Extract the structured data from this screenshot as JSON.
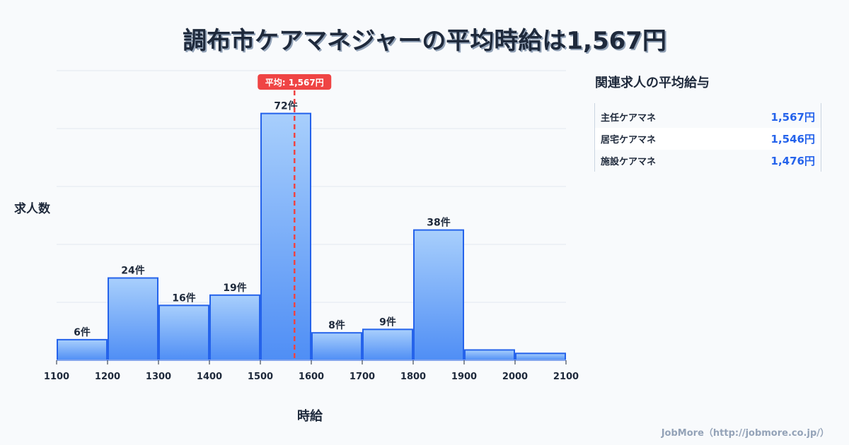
{
  "title": "調布市ケアマネジャーの平均時給は1,567円",
  "chart_data": {
    "type": "bar",
    "title": "調布市ケアマネジャーの平均時給は1,567円",
    "xlabel": "時給",
    "ylabel": "求人数",
    "bin_edges": [
      1100,
      1200,
      1300,
      1400,
      1500,
      1600,
      1700,
      1800,
      1900,
      2000,
      2100
    ],
    "categories": [
      "1100-1200",
      "1200-1300",
      "1300-1400",
      "1400-1500",
      "1500-1600",
      "1600-1700",
      "1700-1800",
      "1800-1900",
      "1900-2000",
      "2000-2100"
    ],
    "values": [
      6,
      24,
      16,
      19,
      72,
      8,
      9,
      38,
      3,
      2
    ],
    "value_labels": [
      "6件",
      "24件",
      "16件",
      "19件",
      "72件",
      "8件",
      "9件",
      "38件",
      "",
      ""
    ],
    "x_ticks": [
      "1100",
      "1200",
      "1300",
      "1400",
      "1500",
      "1600",
      "1700",
      "1800",
      "1900",
      "2000",
      "2100"
    ],
    "xlim": [
      1100,
      2100
    ],
    "ylim": [
      0,
      84.5
    ],
    "grid": true,
    "mean": 1567,
    "mean_label": "平均: 1,567円",
    "colors": {
      "bar_top": "#a8cffc",
      "bar_bottom": "#4f8ef5",
      "bar_border": "#2563eb",
      "mean_line": "#ef4444",
      "grid": "#e2e8f0"
    }
  },
  "sidebar": {
    "title": "関連求人の平均給与",
    "rows": [
      {
        "name": "主任ケアマネ",
        "value": "1,567円"
      },
      {
        "name": "居宅ケアマネ",
        "value": "1,546円"
      },
      {
        "name": "施設ケアマネ",
        "value": "1,476円"
      }
    ]
  },
  "footer": "JobMore（http://jobmore.co.jp/）"
}
